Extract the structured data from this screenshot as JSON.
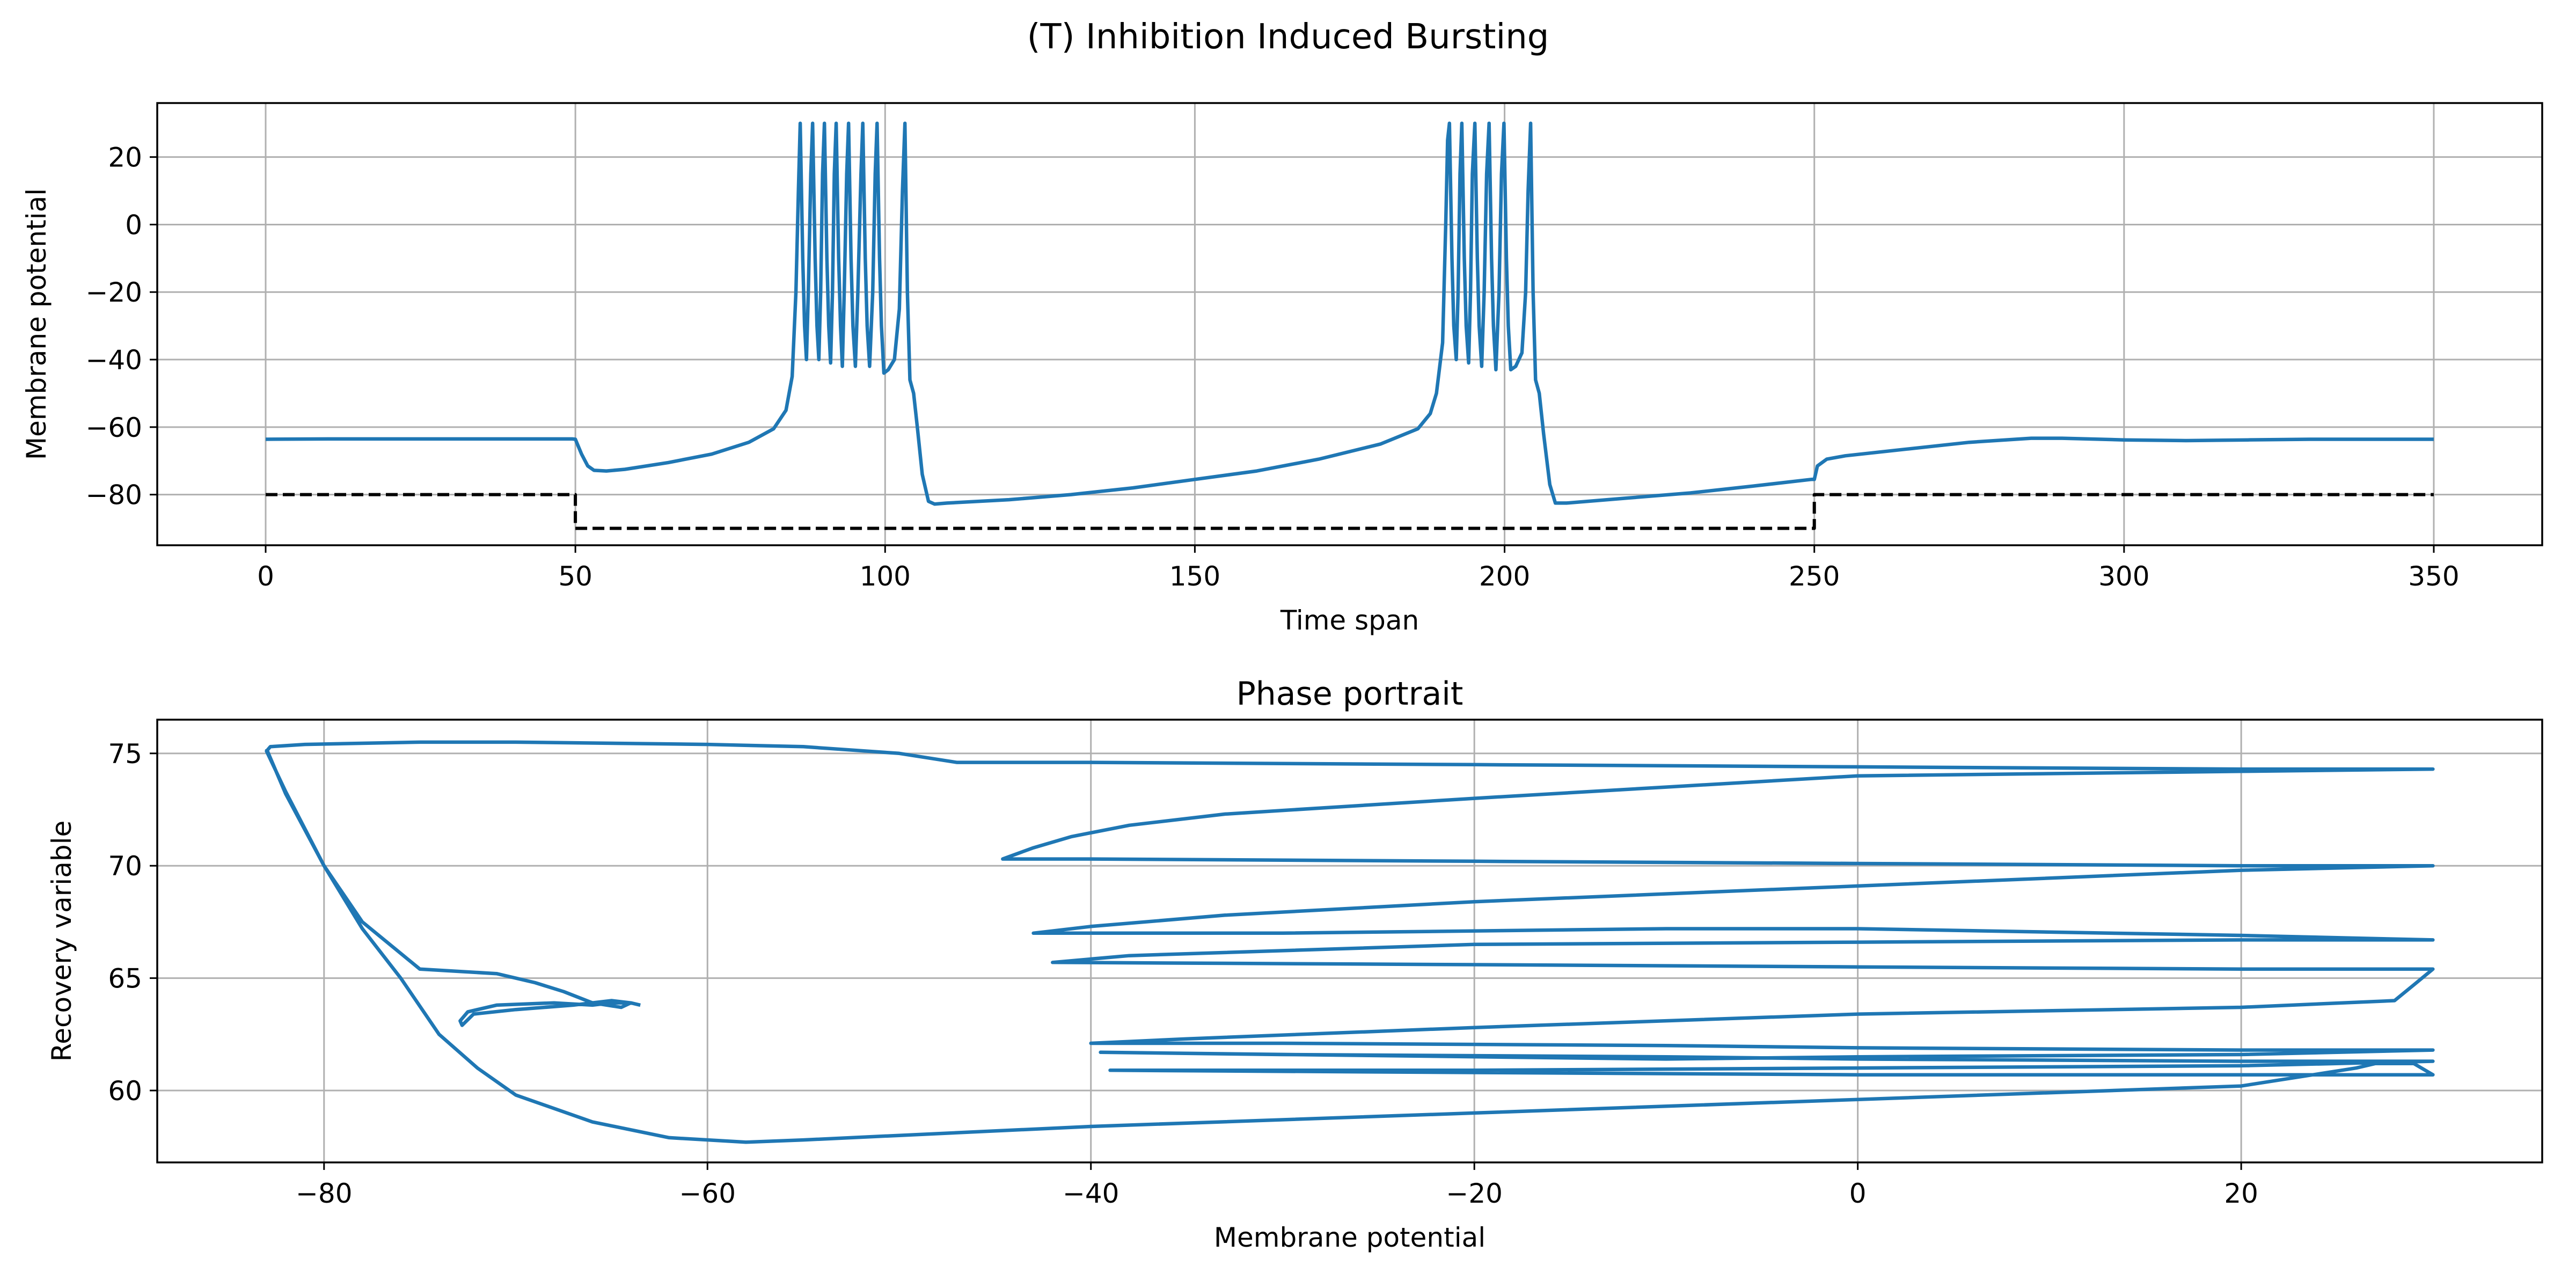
{
  "figure": {
    "suptitle": "(T) Inhibition Induced Bursting"
  },
  "colors": {
    "trace": "#1f77b4",
    "input": "#000000",
    "grid": "#b0b0b0"
  },
  "chart_data": [
    {
      "type": "line",
      "title": "",
      "xlabel": "Time span",
      "ylabel": "Membrane potential",
      "xlim": [
        -17.5,
        367.5
      ],
      "ylim": [
        -95,
        36
      ],
      "xticks": [
        0,
        50,
        100,
        150,
        200,
        250,
        300,
        350
      ],
      "yticks": [
        -80,
        -60,
        -40,
        -20,
        0,
        20
      ],
      "grid": true,
      "series": [
        {
          "style": "solid",
          "points": [
            [
              0,
              -63.6
            ],
            [
              10,
              -63.5
            ],
            [
              25,
              -63.5
            ],
            [
              40,
              -63.5
            ],
            [
              49.5,
              -63.5
            ],
            [
              50,
              -63.6
            ],
            [
              51,
              -68
            ],
            [
              52,
              -71.5
            ],
            [
              53,
              -72.8
            ],
            [
              55,
              -73
            ],
            [
              58,
              -72.5
            ],
            [
              65,
              -70.5
            ],
            [
              72,
              -68
            ],
            [
              78,
              -64.5
            ],
            [
              82,
              -60.5
            ],
            [
              84,
              -55
            ],
            [
              85,
              -45
            ],
            [
              85.6,
              -20
            ],
            [
              86,
              10
            ],
            [
              86.3,
              30
            ],
            [
              86.7,
              -10
            ],
            [
              87,
              -30
            ],
            [
              87.3,
              -40
            ],
            [
              87.6,
              -20
            ],
            [
              88,
              15
            ],
            [
              88.3,
              30
            ],
            [
              88.7,
              -10
            ],
            [
              89,
              -30
            ],
            [
              89.3,
              -40
            ],
            [
              89.6,
              -20
            ],
            [
              89.9,
              15
            ],
            [
              90.2,
              30
            ],
            [
              90.6,
              -10
            ],
            [
              90.9,
              -30
            ],
            [
              91.2,
              -41
            ],
            [
              91.5,
              -20
            ],
            [
              91.8,
              15
            ],
            [
              92.1,
              30
            ],
            [
              92.5,
              -10
            ],
            [
              92.8,
              -30
            ],
            [
              93.1,
              -42
            ],
            [
              93.4,
              -20
            ],
            [
              93.8,
              15
            ],
            [
              94.1,
              30
            ],
            [
              94.5,
              -10
            ],
            [
              94.8,
              -30
            ],
            [
              95.2,
              -42
            ],
            [
              95.6,
              -20
            ],
            [
              96.1,
              15
            ],
            [
              96.4,
              30
            ],
            [
              96.8,
              -10
            ],
            [
              97.1,
              -30
            ],
            [
              97.5,
              -42
            ],
            [
              98,
              -20
            ],
            [
              98.4,
              15
            ],
            [
              98.7,
              30
            ],
            [
              99.1,
              -10
            ],
            [
              99.4,
              -30
            ],
            [
              99.8,
              -44
            ],
            [
              100.5,
              -43
            ],
            [
              101.5,
              -40
            ],
            [
              102.3,
              -25
            ],
            [
              102.8,
              10
            ],
            [
              103.2,
              30
            ],
            [
              103.6,
              -20
            ],
            [
              104,
              -46
            ],
            [
              104.6,
              -50
            ],
            [
              105.2,
              -60
            ],
            [
              106,
              -74
            ],
            [
              107,
              -82
            ],
            [
              108,
              -82.8
            ],
            [
              110,
              -82.5
            ],
            [
              120,
              -81.5
            ],
            [
              130,
              -80
            ],
            [
              140,
              -78
            ],
            [
              150,
              -75.5
            ],
            [
              160,
              -73
            ],
            [
              170,
              -69.5
            ],
            [
              180,
              -65
            ],
            [
              186,
              -60.5
            ],
            [
              188,
              -56
            ],
            [
              189,
              -50
            ],
            [
              190,
              -35
            ],
            [
              190.5,
              0
            ],
            [
              190.8,
              25
            ],
            [
              191.1,
              30
            ],
            [
              191.5,
              -10
            ],
            [
              191.8,
              -30
            ],
            [
              192.2,
              -40
            ],
            [
              192.5,
              -20
            ],
            [
              192.8,
              15
            ],
            [
              193.1,
              30
            ],
            [
              193.5,
              -10
            ],
            [
              193.8,
              -30
            ],
            [
              194.2,
              -41
            ],
            [
              194.5,
              -20
            ],
            [
              194.8,
              15
            ],
            [
              195.2,
              30
            ],
            [
              195.6,
              -10
            ],
            [
              195.9,
              -30
            ],
            [
              196.3,
              -42
            ],
            [
              196.7,
              -20
            ],
            [
              197.1,
              15
            ],
            [
              197.5,
              30
            ],
            [
              197.9,
              -10
            ],
            [
              198.2,
              -30
            ],
            [
              198.6,
              -43
            ],
            [
              199.1,
              -20
            ],
            [
              199.5,
              15
            ],
            [
              199.9,
              30
            ],
            [
              200.3,
              -10
            ],
            [
              200.6,
              -30
            ],
            [
              201,
              -43
            ],
            [
              201.8,
              -42
            ],
            [
              202.8,
              -38
            ],
            [
              203.4,
              -20
            ],
            [
              203.8,
              10
            ],
            [
              204.2,
              30
            ],
            [
              204.6,
              -20
            ],
            [
              205,
              -46
            ],
            [
              205.6,
              -50
            ],
            [
              206.3,
              -62
            ],
            [
              207.3,
              -77
            ],
            [
              208.2,
              -82.5
            ],
            [
              210,
              -82.5
            ],
            [
              220,
              -81
            ],
            [
              230,
              -79.5
            ],
            [
              240,
              -77.5
            ],
            [
              249.5,
              -75.5
            ],
            [
              250,
              -75.5
            ],
            [
              250.5,
              -71.5
            ],
            [
              252,
              -69.5
            ],
            [
              255,
              -68.5
            ],
            [
              265,
              -66.5
            ],
            [
              275,
              -64.5
            ],
            [
              285,
              -63.3
            ],
            [
              290,
              -63.3
            ],
            [
              300,
              -63.8
            ],
            [
              310,
              -64
            ],
            [
              320,
              -63.8
            ],
            [
              330,
              -63.6
            ],
            [
              340,
              -63.6
            ],
            [
              350,
              -63.6
            ]
          ]
        },
        {
          "style": "dashed",
          "points": [
            [
              0,
              -80
            ],
            [
              50,
              -80
            ],
            [
              50,
              -90
            ],
            [
              250,
              -90
            ],
            [
              250,
              -80
            ],
            [
              350,
              -80
            ]
          ]
        }
      ]
    },
    {
      "type": "line",
      "title": "Phase portrait",
      "xlabel": "Membrane potential",
      "ylabel": "Recovery variable",
      "xlim": [
        -88.7,
        35.7
      ],
      "ylim": [
        56.8,
        76.5
      ],
      "xticks": [
        -80,
        -60,
        -40,
        -20,
        0,
        20
      ],
      "yticks": [
        60,
        65,
        70,
        75
      ],
      "grid": true,
      "series": [
        {
          "style": "solid",
          "points": [
            [
              -63.5,
              63.8
            ],
            [
              -64,
              63.9
            ],
            [
              -65,
              63.9
            ],
            [
              -66,
              63.8
            ],
            [
              -68,
              63.9
            ],
            [
              -71,
              63.8
            ],
            [
              -72.5,
              63.5
            ],
            [
              -72.9,
              63.1
            ],
            [
              -72.8,
              62.9
            ],
            [
              -72.2,
              63.4
            ],
            [
              -70,
              63.6
            ],
            [
              -67,
              63.8
            ],
            [
              -65,
              64
            ],
            [
              -64,
              63.9
            ],
            [
              -64.5,
              63.7
            ],
            [
              -66,
              63.9
            ],
            [
              -67.5,
              64.4
            ],
            [
              -69,
              64.8
            ],
            [
              -71,
              65.2
            ],
            [
              -75,
              65.4
            ],
            [
              -78,
              67.5
            ],
            [
              -80,
              70
            ],
            [
              -82,
              73.3
            ],
            [
              -83,
              75.1
            ],
            [
              -82.8,
              75.3
            ],
            [
              -81,
              75.4
            ],
            [
              -75,
              75.5
            ],
            [
              -70,
              75.5
            ],
            [
              -60,
              75.4
            ],
            [
              -55,
              75.3
            ],
            [
              -50,
              75
            ],
            [
              -47,
              74.6
            ],
            [
              -40,
              74.6
            ],
            [
              -20,
              74.5
            ],
            [
              0,
              74.4
            ],
            [
              20,
              74.3
            ],
            [
              30,
              74.3
            ],
            [
              20,
              74.2
            ],
            [
              0,
              74
            ],
            [
              -10,
              73.5
            ],
            [
              -20,
              73
            ],
            [
              -33,
              72.3
            ],
            [
              -38,
              71.8
            ],
            [
              -41,
              71.3
            ],
            [
              -43,
              70.8
            ],
            [
              -44.6,
              70.3
            ],
            [
              -40,
              70.3
            ],
            [
              -20,
              70.2
            ],
            [
              0,
              70.1
            ],
            [
              20,
              70
            ],
            [
              30,
              70
            ],
            [
              20,
              69.8
            ],
            [
              0,
              69.1
            ],
            [
              -20,
              68.4
            ],
            [
              -33,
              67.8
            ],
            [
              -40,
              67.3
            ],
            [
              -43,
              67
            ],
            [
              -30,
              67
            ],
            [
              -10,
              67.2
            ],
            [
              0,
              67.2
            ],
            [
              20,
              66.9
            ],
            [
              30,
              66.7
            ],
            [
              20,
              66.7
            ],
            [
              0,
              66.6
            ],
            [
              -20,
              66.5
            ],
            [
              -38,
              66
            ],
            [
              -42,
              65.7
            ],
            [
              -20,
              65.6
            ],
            [
              0,
              65.5
            ],
            [
              20,
              65.4
            ],
            [
              30,
              65.4
            ],
            [
              29,
              64.7
            ],
            [
              28,
              64
            ],
            [
              20,
              63.7
            ],
            [
              0,
              63.4
            ],
            [
              -20,
              62.8
            ],
            [
              -35,
              62.3
            ],
            [
              -40,
              62.1
            ],
            [
              -30,
              62.1
            ],
            [
              -10,
              62
            ],
            [
              0,
              61.9
            ],
            [
              20,
              61.8
            ],
            [
              30,
              61.8
            ],
            [
              20,
              61.6
            ],
            [
              0,
              61.5
            ],
            [
              -10,
              61.4
            ],
            [
              -39.5,
              61.7
            ],
            [
              -30,
              61.6
            ],
            [
              -10,
              61.5
            ],
            [
              0,
              61.4
            ],
            [
              20,
              61.3
            ],
            [
              30,
              61.3
            ],
            [
              20,
              61.1
            ],
            [
              0,
              61
            ],
            [
              -20,
              60.9
            ],
            [
              -39,
              60.9
            ],
            [
              -20,
              60.8
            ],
            [
              0,
              60.7
            ],
            [
              20,
              60.7
            ],
            [
              30,
              60.7
            ],
            [
              29,
              61.2
            ],
            [
              27,
              61.2
            ],
            [
              26,
              61
            ],
            [
              20,
              60.2
            ],
            [
              0,
              59.6
            ],
            [
              -20,
              59
            ],
            [
              -40,
              58.4
            ],
            [
              -50,
              58
            ],
            [
              -55,
              57.8
            ],
            [
              -58,
              57.7
            ],
            [
              -62,
              57.9
            ],
            [
              -66,
              58.6
            ],
            [
              -70,
              59.8
            ],
            [
              -72,
              61
            ],
            [
              -74,
              62.5
            ],
            [
              -76,
              65
            ],
            [
              -78,
              67.2
            ],
            [
              -80,
              70
            ],
            [
              -82,
              73.2
            ],
            [
              -83,
              75.2
            ]
          ]
        }
      ]
    }
  ]
}
